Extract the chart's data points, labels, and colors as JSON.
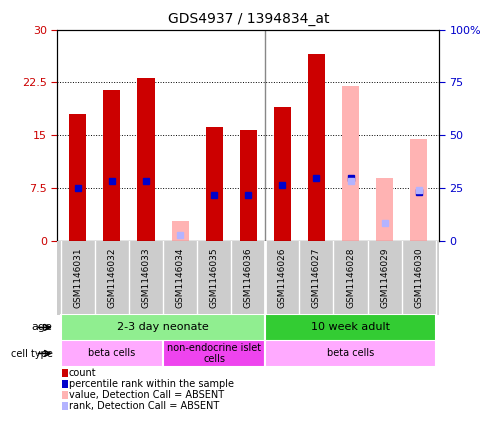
{
  "title": "GDS4937 / 1394834_at",
  "samples": [
    "GSM1146031",
    "GSM1146032",
    "GSM1146033",
    "GSM1146034",
    "GSM1146035",
    "GSM1146036",
    "GSM1146026",
    "GSM1146027",
    "GSM1146028",
    "GSM1146029",
    "GSM1146030"
  ],
  "count_values": [
    18.0,
    21.5,
    23.2,
    null,
    16.2,
    15.8,
    19.0,
    26.5,
    null,
    null,
    null
  ],
  "percentile_values": [
    7.5,
    8.5,
    8.5,
    null,
    6.5,
    6.5,
    8.0,
    9.0,
    9.0,
    null,
    7.0
  ],
  "absent_count_values": [
    null,
    null,
    null,
    2.8,
    null,
    null,
    null,
    null,
    22.0,
    9.0,
    14.5
  ],
  "absent_percentile_values": [
    null,
    null,
    null,
    0.8,
    null,
    null,
    null,
    null,
    8.5,
    2.5,
    7.2
  ],
  "ylim_left": [
    0,
    30
  ],
  "ylim_right": [
    0,
    100
  ],
  "left_ticks": [
    0,
    7.5,
    15,
    22.5,
    30
  ],
  "right_ticks": [
    0,
    25,
    50,
    75,
    100
  ],
  "left_tick_labels": [
    "0",
    "7.5",
    "15",
    "22.5",
    "30"
  ],
  "right_tick_labels": [
    "0",
    "25",
    "50",
    "75",
    "100%"
  ],
  "count_color": "#cc0000",
  "absent_count_color": "#ffb3b3",
  "percentile_color": "#0000cc",
  "absent_percentile_color": "#b3b3ff",
  "age_groups": [
    {
      "label": "2-3 day neonate",
      "start": 0,
      "end": 6,
      "color": "#90ee90"
    },
    {
      "label": "10 week adult",
      "start": 6,
      "end": 11,
      "color": "#33cc33"
    }
  ],
  "cell_type_groups": [
    {
      "label": "beta cells",
      "start": 0,
      "end": 3,
      "color": "#ffaaff"
    },
    {
      "label": "non-endocrine islet\ncells",
      "start": 3,
      "end": 6,
      "color": "#ee44ee"
    },
    {
      "label": "beta cells",
      "start": 6,
      "end": 11,
      "color": "#ffaaff"
    }
  ],
  "legend_items": [
    {
      "color": "#cc0000",
      "label": "count"
    },
    {
      "color": "#0000cc",
      "label": "percentile rank within the sample"
    },
    {
      "color": "#ffb3b3",
      "label": "value, Detection Call = ABSENT"
    },
    {
      "color": "#b3b3ff",
      "label": "rank, Detection Call = ABSENT"
    }
  ],
  "bg_color": "#ffffff"
}
